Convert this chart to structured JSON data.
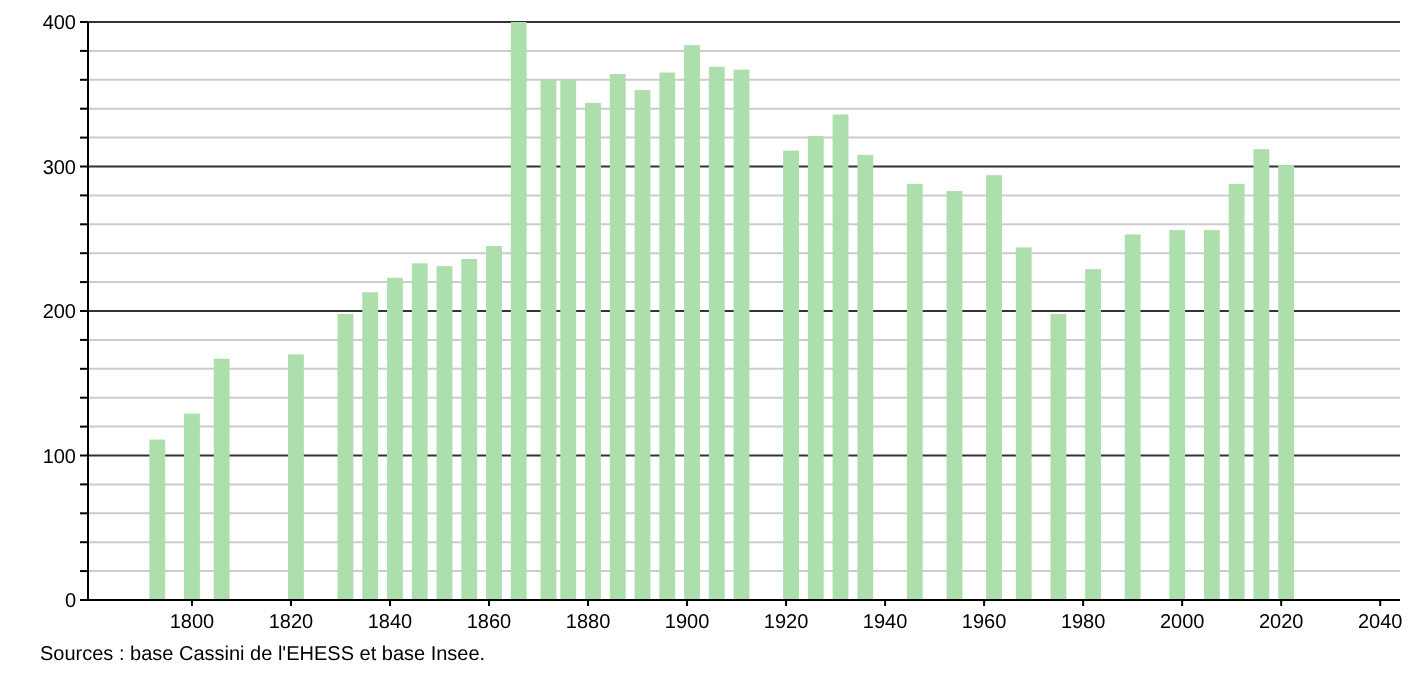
{
  "chart_data": {
    "type": "bar",
    "x": [
      1793,
      1800,
      1806,
      1821,
      1831,
      1836,
      1841,
      1846,
      1851,
      1856,
      1861,
      1866,
      1872,
      1876,
      1881,
      1886,
      1891,
      1896,
      1901,
      1906,
      1911,
      1921,
      1926,
      1931,
      1936,
      1946,
      1954,
      1962,
      1968,
      1975,
      1982,
      1990,
      1999,
      2006,
      2011,
      2016,
      2021
    ],
    "values": [
      111,
      129,
      167,
      170,
      198,
      213,
      223,
      233,
      231,
      236,
      245,
      400,
      360,
      360,
      344,
      364,
      353,
      365,
      384,
      369,
      367,
      311,
      321,
      336,
      308,
      288,
      283,
      294,
      244,
      198,
      229,
      253,
      256,
      256,
      288,
      312,
      301
    ],
    "color": "#addfad",
    "xlim": [
      1779,
      2044
    ],
    "xticks": [
      1800,
      1820,
      1840,
      1860,
      1880,
      1900,
      1920,
      1940,
      1960,
      1980,
      2000,
      2020,
      2040
    ],
    "ylim": [
      0,
      400
    ],
    "yticks": [
      0,
      {
        "value": 20,
        "label": null
      },
      {
        "value": 40,
        "label": null
      },
      {
        "value": 60,
        "label": null
      },
      {
        "value": 80,
        "label": null
      },
      100,
      {
        "value": 120,
        "label": null
      },
      {
        "value": 140,
        "label": null
      },
      {
        "value": 160,
        "label": null
      },
      {
        "value": 180,
        "label": null
      },
      200,
      {
        "value": 220,
        "label": null
      },
      {
        "value": 240,
        "label": null
      },
      {
        "value": 260,
        "label": null
      },
      {
        "value": 280,
        "label": null
      },
      300,
      {
        "value": 320,
        "label": null
      },
      {
        "value": 340,
        "label": null
      },
      {
        "value": 360,
        "label": null
      },
      {
        "value": 380,
        "label": null
      },
      400
    ],
    "grid": "y",
    "annotations": [
      "Sources : base Cassini de l'EHESS et base Insee."
    ]
  }
}
